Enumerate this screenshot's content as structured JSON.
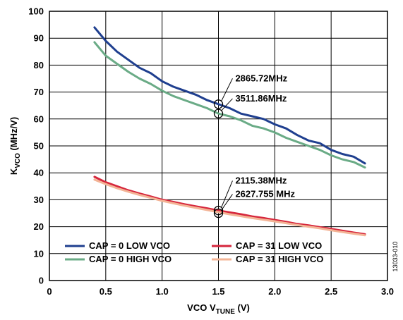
{
  "chart_data": {
    "type": "line",
    "xlabel_main": "VCO V",
    "xlabel_sub": "TUNE",
    "xlabel_unit": " (V)",
    "ylabel_main": "K",
    "ylabel_sub": "VCO",
    "ylabel_unit": " (MHz/V)",
    "xlim": [
      0,
      3.0
    ],
    "ylim": [
      0,
      100
    ],
    "xticks": [
      0,
      0.5,
      1.0,
      1.5,
      2.0,
      2.5,
      3.0
    ],
    "xtick_labels": [
      "0",
      "0.5",
      "1.0",
      "1.5",
      "2.0",
      "2.5",
      "3.0"
    ],
    "yticks": [
      0,
      10,
      20,
      30,
      40,
      50,
      60,
      70,
      80,
      90,
      100
    ],
    "ytick_labels": [
      "0",
      "10",
      "20",
      "30",
      "40",
      "50",
      "60",
      "70",
      "80",
      "90",
      "100"
    ],
    "grid": true,
    "legend_position": "bottom-left",
    "series": [
      {
        "name": "CAP = 0 LOW VCO",
        "color": "#1f3f8f",
        "x": [
          0.4,
          0.5,
          0.6,
          0.7,
          0.8,
          0.9,
          1.0,
          1.1,
          1.2,
          1.3,
          1.4,
          1.5,
          1.6,
          1.7,
          1.8,
          1.9,
          2.0,
          2.1,
          2.2,
          2.3,
          2.4,
          2.5,
          2.6,
          2.7,
          2.8
        ],
        "y": [
          94,
          89,
          85,
          82,
          79,
          77,
          74,
          72,
          70.5,
          69,
          67,
          65.5,
          64,
          62,
          61,
          60,
          58,
          56.5,
          54,
          52,
          51,
          48.5,
          47,
          46,
          43.5
        ]
      },
      {
        "name": "CAP = 0 HIGH VCO",
        "color": "#6aab86",
        "x": [
          0.4,
          0.5,
          0.6,
          0.7,
          0.8,
          0.9,
          1.0,
          1.1,
          1.2,
          1.3,
          1.4,
          1.5,
          1.6,
          1.7,
          1.8,
          1.9,
          2.0,
          2.1,
          2.2,
          2.3,
          2.4,
          2.5,
          2.6,
          2.7,
          2.8
        ],
        "y": [
          88.5,
          83.5,
          80.5,
          77.5,
          75,
          73,
          70.5,
          68.5,
          67,
          65.5,
          64,
          62,
          61,
          59.5,
          57.5,
          56.5,
          55,
          53,
          51.5,
          50,
          48.5,
          46.5,
          45,
          44,
          42
        ]
      },
      {
        "name": "CAP = 31 LOW VCO",
        "color": "#d6263c",
        "x": [
          0.4,
          0.5,
          0.6,
          0.7,
          0.8,
          0.9,
          1.0,
          1.1,
          1.2,
          1.3,
          1.4,
          1.5,
          1.6,
          1.7,
          1.8,
          1.9,
          2.0,
          2.1,
          2.2,
          2.3,
          2.4,
          2.5,
          2.6,
          2.7,
          2.8
        ],
        "y": [
          38.5,
          36.5,
          35,
          33.5,
          32.3,
          31.2,
          30,
          29.2,
          28.3,
          27.5,
          26.8,
          26,
          25.3,
          24.6,
          23.8,
          23.2,
          22.5,
          21.8,
          21,
          20.5,
          19.8,
          19.2,
          18.5,
          17.8,
          17.2
        ]
      },
      {
        "name": "CAP = 31 HIGH VCO",
        "color": "#f3b496",
        "x": [
          0.4,
          0.5,
          0.6,
          0.7,
          0.8,
          0.9,
          1.0,
          1.1,
          1.2,
          1.3,
          1.4,
          1.5,
          1.6,
          1.7,
          1.8,
          1.9,
          2.0,
          2.1,
          2.2,
          2.3,
          2.4,
          2.5,
          2.6,
          2.7,
          2.8
        ],
        "y": [
          37.5,
          35.8,
          34.3,
          33,
          31.8,
          30.7,
          29.6,
          28.7,
          27.8,
          27,
          26.2,
          25.4,
          24.6,
          23.9,
          23.2,
          22.6,
          22,
          21.3,
          20.6,
          20,
          19.4,
          18.7,
          18,
          17.4,
          16.8
        ]
      }
    ],
    "annotations": [
      {
        "text": "2865.72MHz",
        "x": 1.5,
        "y": 65.5,
        "label_x": 1.65,
        "label_y": 74
      },
      {
        "text": "3511.86MHz",
        "x": 1.5,
        "y": 62,
        "label_x": 1.65,
        "label_y": 66.5
      },
      {
        "text": "2115.38MHz",
        "x": 1.5,
        "y": 26,
        "label_x": 1.65,
        "label_y": 36
      },
      {
        "text": "2627.755 MHz",
        "x": 1.5,
        "y": 25,
        "label_x": 1.65,
        "label_y": 31
      }
    ],
    "figure_id": "13033-010"
  }
}
